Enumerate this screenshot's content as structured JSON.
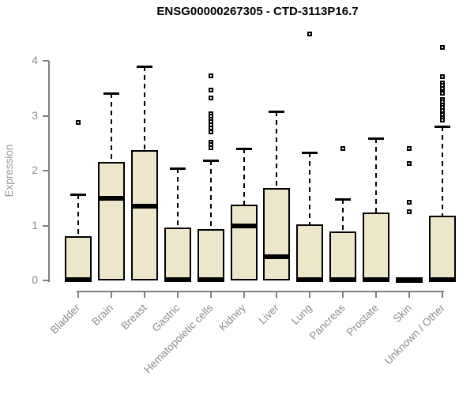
{
  "chart_data": {
    "type": "box",
    "title": "ENSG00000267305 - CTD-3113P16.7",
    "ylabel": "Expression",
    "xlabel": "",
    "ylim": [
      0,
      4
    ],
    "yticks": [
      0,
      1,
      2,
      3,
      4
    ],
    "grid": false,
    "legend": "none",
    "colors": {
      "box_fill": "#ECE7CB",
      "box_border": "#000000",
      "median": "#000000",
      "whisker": "#000000",
      "axis": "#808080",
      "tick_label": "#8C8C8C",
      "title": "#000000",
      "background": "#FFFFFF"
    },
    "categories": [
      "Bladder",
      "Brain",
      "Breast",
      "Gastric",
      "Hematopoietic cells",
      "Kidney",
      "Liver",
      "Lung",
      "Pancreas",
      "Prostate",
      "Skin",
      "Unknown / Other"
    ],
    "series": [
      {
        "category": "Bladder",
        "q1": 0,
        "median": 0.02,
        "q3": 0.8,
        "whisker_low": 0,
        "whisker_high": 1.57,
        "outliers": [
          2.88
        ]
      },
      {
        "category": "Brain",
        "q1": 0,
        "median": 1.5,
        "q3": 2.16,
        "whisker_low": 0,
        "whisker_high": 3.41,
        "outliers": []
      },
      {
        "category": "Breast",
        "q1": 0,
        "median": 1.35,
        "q3": 2.37,
        "whisker_low": 0,
        "whisker_high": 3.9,
        "outliers": []
      },
      {
        "category": "Gastric",
        "q1": 0,
        "median": 0.02,
        "q3": 0.96,
        "whisker_low": 0,
        "whisker_high": 2.04,
        "outliers": []
      },
      {
        "category": "Hematopoietic cells",
        "q1": 0,
        "median": 0.02,
        "q3": 0.94,
        "whisker_low": 0,
        "whisker_high": 2.19,
        "outliers": [
          3.73,
          3.47,
          3.32,
          3.04,
          2.99,
          2.94,
          2.89,
          2.84,
          2.78,
          2.7,
          2.52,
          2.47,
          2.42
        ]
      },
      {
        "category": "Kidney",
        "q1": 0,
        "median": 1.0,
        "q3": 1.38,
        "whisker_low": 0,
        "whisker_high": 2.4,
        "outliers": []
      },
      {
        "category": "Liver",
        "q1": 0,
        "median": 0.43,
        "q3": 1.68,
        "whisker_low": 0,
        "whisker_high": 3.08,
        "outliers": []
      },
      {
        "category": "Lung",
        "q1": 0,
        "median": 0.02,
        "q3": 1.02,
        "whisker_low": 0,
        "whisker_high": 2.33,
        "outliers": [
          4.49
        ]
      },
      {
        "category": "Pancreas",
        "q1": 0,
        "median": 0.02,
        "q3": 0.89,
        "whisker_low": 0,
        "whisker_high": 1.48,
        "outliers": [
          2.4
        ]
      },
      {
        "category": "Prostate",
        "q1": 0,
        "median": 0.02,
        "q3": 1.24,
        "whisker_low": 0,
        "whisker_high": 2.59,
        "outliers": []
      },
      {
        "category": "Skin",
        "q1": 0,
        "median": 0.01,
        "q3": 0.02,
        "whisker_low": 0,
        "whisker_high": 0.02,
        "outliers": [
          2.4,
          2.13,
          1.42,
          1.25
        ]
      },
      {
        "category": "Unknown / Other",
        "q1": 0,
        "median": 0.02,
        "q3": 1.18,
        "whisker_low": 0,
        "whisker_high": 2.81,
        "outliers": [
          4.24,
          3.71,
          3.6,
          3.55,
          3.5,
          3.41,
          3.3,
          3.25,
          3.2,
          3.15,
          3.09,
          3.02,
          2.97,
          2.92
        ]
      }
    ]
  }
}
